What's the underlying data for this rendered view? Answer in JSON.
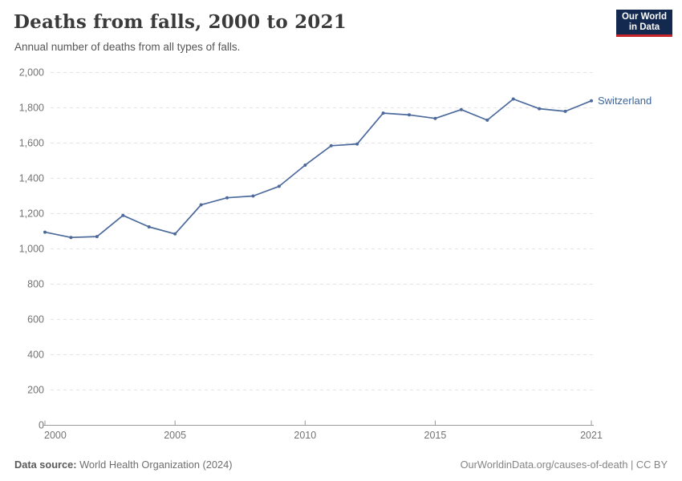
{
  "header": {
    "title": "Deaths from falls, 2000 to 2021",
    "subtitle": "Annual number of deaths from all types of falls.",
    "logo": {
      "line1": "Our World",
      "line2": "in Data"
    }
  },
  "chart_data": {
    "type": "line",
    "title": "Deaths from falls, 2000 to 2021",
    "subtitle": "Annual number of deaths from all types of falls.",
    "xlabel": "",
    "ylabel": "",
    "x": [
      2000,
      2001,
      2002,
      2003,
      2004,
      2005,
      2006,
      2007,
      2008,
      2009,
      2010,
      2011,
      2012,
      2013,
      2014,
      2015,
      2016,
      2017,
      2018,
      2019,
      2020,
      2021
    ],
    "series": [
      {
        "name": "Switzerland",
        "color": "#4c6a9c",
        "label_color": "#3d649c",
        "values": [
          1095,
          1065,
          1070,
          1190,
          1125,
          1085,
          1250,
          1290,
          1300,
          1355,
          1475,
          1585,
          1595,
          1770,
          1760,
          1740,
          1790,
          1730,
          1850,
          1795,
          1780,
          1840
        ]
      }
    ],
    "ylim": [
      0,
      2000
    ],
    "ytick_step": 200,
    "xticks": [
      2000,
      2005,
      2010,
      2015,
      2021
    ],
    "grid": "horizontal-dashed",
    "legend_position": "line-end-label",
    "gridline_color": "#e3e3e3",
    "axis_color": "#9a9a9a",
    "tick_label_color": "#737373"
  },
  "footer": {
    "source_label": "Data source:",
    "source_value": " World Health Organization (2024)",
    "link": "OurWorldinData.org/causes-of-death | CC BY"
  }
}
